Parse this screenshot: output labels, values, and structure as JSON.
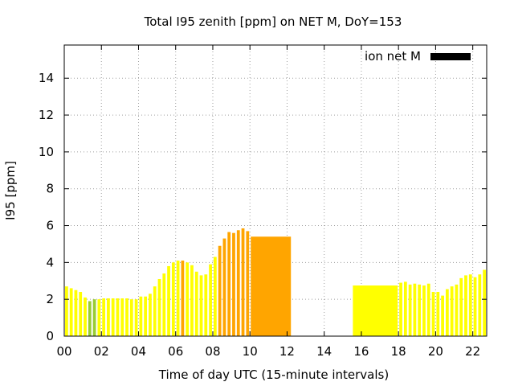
{
  "chart_data": {
    "type": "bar",
    "title": "Total I95 zenith [ppm] on NET M, DoY=153",
    "xlabel": "Time of day UTC (15-minute intervals)",
    "ylabel": "I95 [ppm]",
    "xlim": [
      0,
      22.75
    ],
    "ylim": [
      0,
      15.8
    ],
    "x_ticks": [
      "00",
      "02",
      "04",
      "06",
      "08",
      "10",
      "12",
      "14",
      "16",
      "18",
      "20",
      "22"
    ],
    "x_tick_values": [
      0,
      2,
      4,
      6,
      8,
      10,
      12,
      14,
      16,
      18,
      20,
      22
    ],
    "y_ticks": [
      "0",
      "2",
      "4",
      "6",
      "8",
      "10",
      "12",
      "14"
    ],
    "y_tick_values": [
      0,
      2,
      4,
      6,
      8,
      10,
      12,
      14
    ],
    "grid": true,
    "legend": {
      "label": "ion net M",
      "position": "top-right",
      "color": "#000000"
    },
    "colors": {
      "yellow": "#ffff00",
      "green": "#99cc33",
      "orange": "#ffa500"
    },
    "bars": [
      {
        "x": 0.0,
        "w": 0.25,
        "value": 2.7,
        "color": "yellow"
      },
      {
        "x": 0.25,
        "w": 0.25,
        "value": 2.6,
        "color": "yellow"
      },
      {
        "x": 0.5,
        "w": 0.25,
        "value": 2.5,
        "color": "yellow"
      },
      {
        "x": 0.75,
        "w": 0.25,
        "value": 2.4,
        "color": "yellow"
      },
      {
        "x": 1.0,
        "w": 0.25,
        "value": 2.1,
        "color": "yellow"
      },
      {
        "x": 1.25,
        "w": 0.25,
        "value": 1.9,
        "color": "green"
      },
      {
        "x": 1.5,
        "w": 0.25,
        "value": 2.0,
        "color": "green"
      },
      {
        "x": 1.75,
        "w": 0.25,
        "value": 2.0,
        "color": "yellow"
      },
      {
        "x": 2.0,
        "w": 0.25,
        "value": 2.05,
        "color": "yellow"
      },
      {
        "x": 2.25,
        "w": 0.25,
        "value": 2.05,
        "color": "yellow"
      },
      {
        "x": 2.5,
        "w": 0.25,
        "value": 2.05,
        "color": "yellow"
      },
      {
        "x": 2.75,
        "w": 0.25,
        "value": 2.05,
        "color": "yellow"
      },
      {
        "x": 3.0,
        "w": 0.25,
        "value": 2.05,
        "color": "yellow"
      },
      {
        "x": 3.25,
        "w": 0.25,
        "value": 2.05,
        "color": "yellow"
      },
      {
        "x": 3.5,
        "w": 0.25,
        "value": 2.0,
        "color": "yellow"
      },
      {
        "x": 3.75,
        "w": 0.25,
        "value": 2.0,
        "color": "yellow"
      },
      {
        "x": 4.0,
        "w": 0.25,
        "value": 2.15,
        "color": "yellow"
      },
      {
        "x": 4.25,
        "w": 0.25,
        "value": 2.15,
        "color": "yellow"
      },
      {
        "x": 4.5,
        "w": 0.25,
        "value": 2.3,
        "color": "yellow"
      },
      {
        "x": 4.75,
        "w": 0.25,
        "value": 2.7,
        "color": "yellow"
      },
      {
        "x": 5.0,
        "w": 0.25,
        "value": 3.1,
        "color": "yellow"
      },
      {
        "x": 5.25,
        "w": 0.25,
        "value": 3.4,
        "color": "yellow"
      },
      {
        "x": 5.5,
        "w": 0.25,
        "value": 3.8,
        "color": "yellow"
      },
      {
        "x": 5.75,
        "w": 0.25,
        "value": 4.0,
        "color": "yellow"
      },
      {
        "x": 6.0,
        "w": 0.25,
        "value": 4.1,
        "color": "yellow"
      },
      {
        "x": 6.25,
        "w": 0.25,
        "value": 4.1,
        "color": "orange"
      },
      {
        "x": 6.5,
        "w": 0.25,
        "value": 4.0,
        "color": "yellow"
      },
      {
        "x": 6.75,
        "w": 0.25,
        "value": 3.85,
        "color": "yellow"
      },
      {
        "x": 7.0,
        "w": 0.25,
        "value": 3.5,
        "color": "yellow"
      },
      {
        "x": 7.25,
        "w": 0.25,
        "value": 3.3,
        "color": "yellow"
      },
      {
        "x": 7.5,
        "w": 0.25,
        "value": 3.35,
        "color": "yellow"
      },
      {
        "x": 7.75,
        "w": 0.25,
        "value": 3.9,
        "color": "yellow"
      },
      {
        "x": 8.0,
        "w": 0.25,
        "value": 4.3,
        "color": "yellow"
      },
      {
        "x": 8.25,
        "w": 0.25,
        "value": 4.9,
        "color": "orange"
      },
      {
        "x": 8.5,
        "w": 0.25,
        "value": 5.3,
        "color": "orange"
      },
      {
        "x": 8.75,
        "w": 0.25,
        "value": 5.65,
        "color": "orange"
      },
      {
        "x": 9.0,
        "w": 0.25,
        "value": 5.6,
        "color": "orange"
      },
      {
        "x": 9.25,
        "w": 0.25,
        "value": 5.75,
        "color": "orange"
      },
      {
        "x": 9.5,
        "w": 0.25,
        "value": 5.85,
        "color": "orange"
      },
      {
        "x": 9.75,
        "w": 0.25,
        "value": 5.7,
        "color": "orange"
      },
      {
        "x": 10.0,
        "w": 2.25,
        "value": 5.4,
        "color": "orange"
      },
      {
        "x": 15.5,
        "w": 2.5,
        "value": 2.75,
        "color": "yellow"
      },
      {
        "x": 18.0,
        "w": 0.25,
        "value": 2.9,
        "color": "yellow"
      },
      {
        "x": 18.25,
        "w": 0.25,
        "value": 2.95,
        "color": "yellow"
      },
      {
        "x": 18.5,
        "w": 0.25,
        "value": 2.8,
        "color": "yellow"
      },
      {
        "x": 18.75,
        "w": 0.25,
        "value": 2.85,
        "color": "yellow"
      },
      {
        "x": 19.0,
        "w": 0.25,
        "value": 2.8,
        "color": "yellow"
      },
      {
        "x": 19.25,
        "w": 0.25,
        "value": 2.75,
        "color": "yellow"
      },
      {
        "x": 19.5,
        "w": 0.25,
        "value": 2.85,
        "color": "yellow"
      },
      {
        "x": 19.75,
        "w": 0.25,
        "value": 2.4,
        "color": "yellow"
      },
      {
        "x": 20.0,
        "w": 0.25,
        "value": 2.4,
        "color": "yellow"
      },
      {
        "x": 20.25,
        "w": 0.25,
        "value": 2.2,
        "color": "yellow"
      },
      {
        "x": 20.5,
        "w": 0.25,
        "value": 2.55,
        "color": "yellow"
      },
      {
        "x": 20.75,
        "w": 0.25,
        "value": 2.7,
        "color": "yellow"
      },
      {
        "x": 21.0,
        "w": 0.25,
        "value": 2.8,
        "color": "yellow"
      },
      {
        "x": 21.25,
        "w": 0.25,
        "value": 3.15,
        "color": "yellow"
      },
      {
        "x": 21.5,
        "w": 0.25,
        "value": 3.3,
        "color": "yellow"
      },
      {
        "x": 21.75,
        "w": 0.25,
        "value": 3.35,
        "color": "yellow"
      },
      {
        "x": 22.0,
        "w": 0.25,
        "value": 3.2,
        "color": "yellow"
      },
      {
        "x": 22.25,
        "w": 0.25,
        "value": 3.35,
        "color": "yellow"
      },
      {
        "x": 22.5,
        "w": 0.25,
        "value": 3.6,
        "color": "yellow"
      }
    ]
  }
}
